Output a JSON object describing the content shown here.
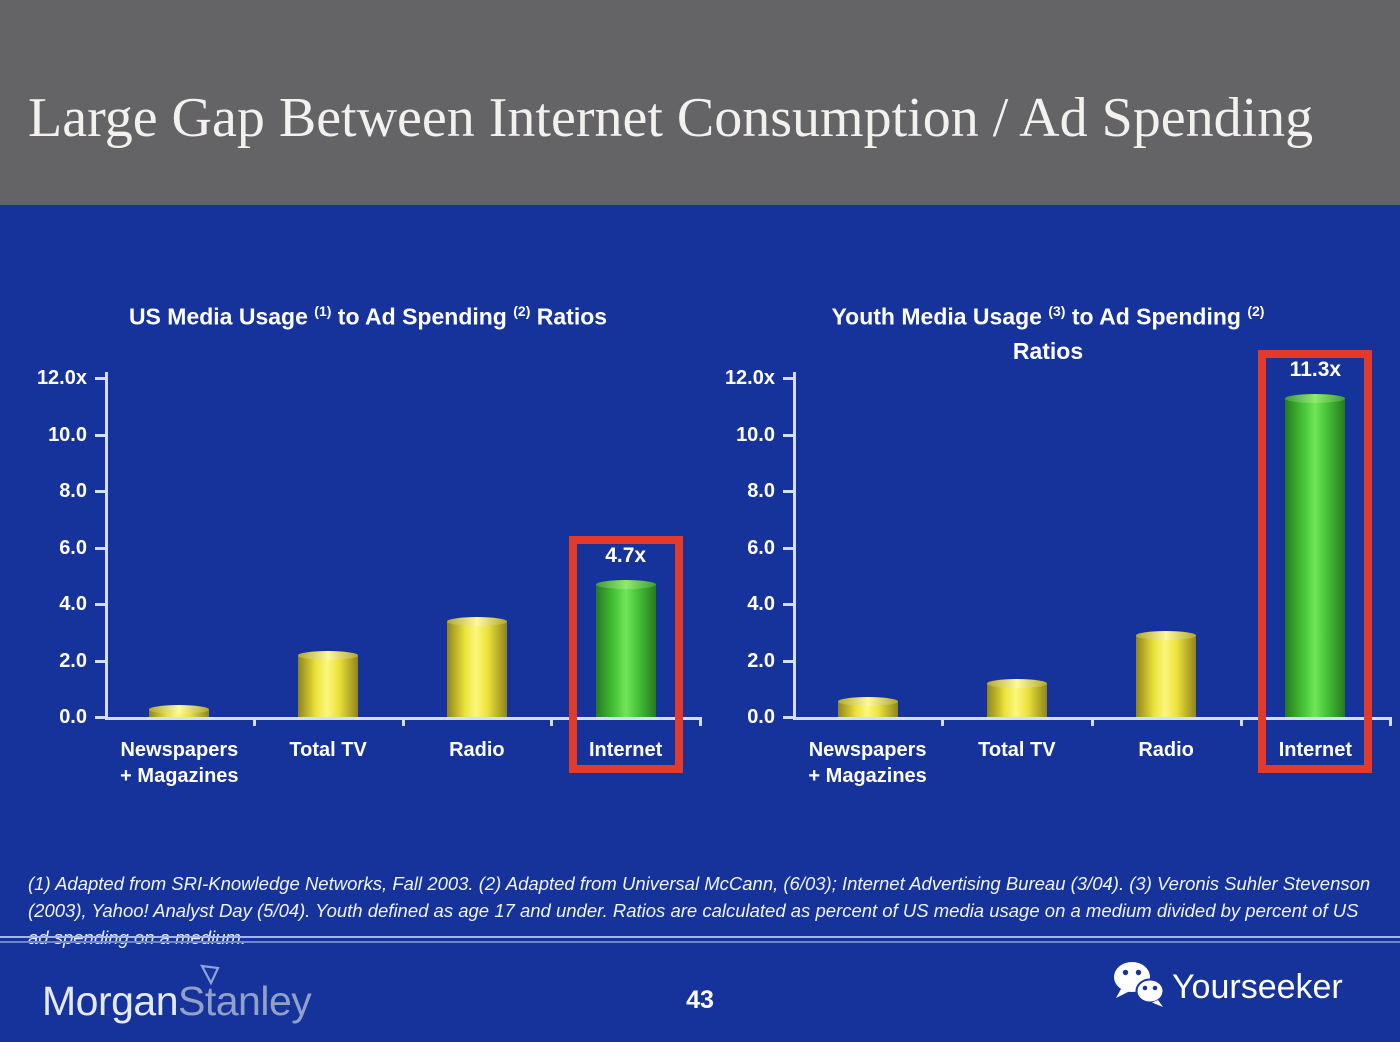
{
  "slide": {
    "title": "Large Gap Between Internet Consumption / Ad Spending",
    "footnote": "(1) Adapted from SRI-Knowledge Networks, Fall 2003.  (2) Adapted from Universal McCann, (6/03); Internet Advertising Bureau (3/04). (3) Veronis Suhler Stevenson (2003), Yahoo! Analyst Day (5/04).  Youth defined as age 17 and under.  Ratios are calculated as percent of US media usage on a medium divided by percent of US ad spending on a medium.",
    "page_number": "43"
  },
  "footer": {
    "brand_morgan": "Morgan",
    "brand_stanley": "Stanley",
    "watermark": "Yourseeker"
  },
  "icons": {
    "watermark_logo": "wechat-icon",
    "brand_mark": "triangle-icon"
  },
  "colors": {
    "header_bg": "#646467",
    "slide_bg": "#16339b",
    "highlight_red": "#e23b2c",
    "bar_yellow": "#f0e63e",
    "bar_green": "#4fc93c",
    "axis": "#d5def7",
    "text": "#ffffff"
  },
  "chart_data": [
    {
      "type": "bar",
      "title": "US Media Usage (1) to Ad Spending (2) Ratios",
      "title_parts": [
        {
          "t": "US Media Usage "
        },
        {
          "s": "(1)"
        },
        {
          "t": " to Ad Spending "
        },
        {
          "s": "(2)"
        },
        {
          "t": " Ratios"
        }
      ],
      "categories": [
        "Newspapers + Magazines",
        "Total TV",
        "Radio",
        "Internet"
      ],
      "category_lines": [
        [
          "Newspapers",
          "+ Magazines"
        ],
        [
          "Total TV"
        ],
        [
          "Radio"
        ],
        [
          "Internet"
        ]
      ],
      "values": [
        0.3,
        2.2,
        3.4,
        4.7
      ],
      "data_labels": [
        "",
        "",
        "",
        "4.7x"
      ],
      "highlight_index": 3,
      "xlabel": "",
      "ylabel": "",
      "ylim": [
        0,
        12
      ],
      "ytick_values": [
        12,
        10,
        8,
        6,
        4,
        2,
        0
      ],
      "ytick_labels": [
        "12.0x",
        "10.0",
        "8.0",
        "6.0",
        "4.0",
        "2.0",
        "0.0"
      ],
      "grid": false,
      "legend": "none",
      "bar_color_default": "#f0e63e",
      "bar_color_highlight": "#4fc93c",
      "highlight_box_color": "#e23b2c"
    },
    {
      "type": "bar",
      "title": "Youth Media Usage (3) to Ad Spending (2) Ratios",
      "title_parts": [
        {
          "t": "Youth Media Usage "
        },
        {
          "s": "(3)"
        },
        {
          "t": " to Ad Spending "
        },
        {
          "s": "(2)"
        },
        {
          "br": true
        },
        {
          "t": "Ratios"
        }
      ],
      "categories": [
        "Newspapers + Magazines",
        "Total TV",
        "Radio",
        "Internet"
      ],
      "category_lines": [
        [
          "Newspapers",
          "+ Magazines"
        ],
        [
          "Total TV"
        ],
        [
          "Radio"
        ],
        [
          "Internet"
        ]
      ],
      "values": [
        0.55,
        1.2,
        2.9,
        11.3
      ],
      "data_labels": [
        "",
        "",
        "",
        "11.3x"
      ],
      "highlight_index": 3,
      "xlabel": "",
      "ylabel": "",
      "ylim": [
        0,
        12
      ],
      "ytick_values": [
        12,
        10,
        8,
        6,
        4,
        2,
        0
      ],
      "ytick_labels": [
        "12.0x",
        "10.0",
        "8.0",
        "6.0",
        "4.0",
        "2.0",
        "0.0"
      ],
      "grid": false,
      "legend": "none",
      "bar_color_default": "#f0e63e",
      "bar_color_highlight": "#4fc93c",
      "highlight_box_color": "#e23b2c"
    }
  ]
}
